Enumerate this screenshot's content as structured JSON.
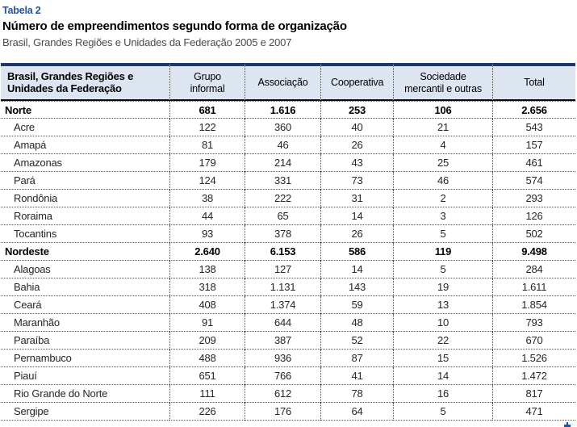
{
  "page": {
    "table_label": "Tabela 2",
    "title": "Número de empreendimentos segundo forma de organização",
    "subtitle": "Brasil, Grandes Regiões e Unidades da Federação 2005 e 2007"
  },
  "colors": {
    "accent_blue": "#2152A3",
    "header_top_border": "#1B3A6B",
    "header_background": "#DCE5F0",
    "subtitle_gray": "#4A4A4A",
    "grid_dotted": "#555555"
  },
  "table": {
    "columns": [
      "Brasil, Grandes Regiões e Unidades da Federação",
      "Grupo informal",
      "Associação",
      "Cooperativa",
      "Sociedade mercantil e outras",
      "Total"
    ],
    "rows": [
      {
        "label": "Norte",
        "bold": true,
        "values": [
          "681",
          "1.616",
          "253",
          "106",
          "2.656"
        ]
      },
      {
        "label": "Acre",
        "bold": false,
        "values": [
          "122",
          "360",
          "40",
          "21",
          "543"
        ]
      },
      {
        "label": "Amapá",
        "bold": false,
        "values": [
          "81",
          "46",
          "26",
          "4",
          "157"
        ]
      },
      {
        "label": "Amazonas",
        "bold": false,
        "values": [
          "179",
          "214",
          "43",
          "25",
          "461"
        ]
      },
      {
        "label": "Pará",
        "bold": false,
        "values": [
          "124",
          "331",
          "73",
          "46",
          "574"
        ]
      },
      {
        "label": "Rondônia",
        "bold": false,
        "values": [
          "38",
          "222",
          "31",
          "2",
          "293"
        ]
      },
      {
        "label": "Roraima",
        "bold": false,
        "values": [
          "44",
          "65",
          "14",
          "3",
          "126"
        ]
      },
      {
        "label": "Tocantins",
        "bold": false,
        "values": [
          "93",
          "378",
          "26",
          "5",
          "502"
        ]
      },
      {
        "label": "Nordeste",
        "bold": true,
        "values": [
          "2.640",
          "6.153",
          "586",
          "119",
          "9.498"
        ]
      },
      {
        "label": "Alagoas",
        "bold": false,
        "values": [
          "138",
          "127",
          "14",
          "5",
          "284"
        ]
      },
      {
        "label": "Bahia",
        "bold": false,
        "values": [
          "318",
          "1.131",
          "143",
          "19",
          "1.611"
        ]
      },
      {
        "label": "Ceará",
        "bold": false,
        "values": [
          "408",
          "1.374",
          "59",
          "13",
          "1.854"
        ]
      },
      {
        "label": "Maranhão",
        "bold": false,
        "values": [
          "91",
          "644",
          "48",
          "10",
          "793"
        ]
      },
      {
        "label": "Paraíba",
        "bold": false,
        "values": [
          "209",
          "387",
          "52",
          "22",
          "670"
        ]
      },
      {
        "label": "Pernambuco",
        "bold": false,
        "values": [
          "488",
          "936",
          "87",
          "15",
          "1.526"
        ]
      },
      {
        "label": "Piauí",
        "bold": false,
        "values": [
          "651",
          "766",
          "41",
          "14",
          "1.472"
        ]
      },
      {
        "label": "Rio Grande do Norte",
        "bold": false,
        "values": [
          "111",
          "612",
          "78",
          "16",
          "817"
        ]
      },
      {
        "label": "Sergipe",
        "bold": false,
        "values": [
          "226",
          "176",
          "64",
          "5",
          "471"
        ]
      }
    ]
  },
  "footer": {
    "continuation_mark": "continua-arrow"
  }
}
